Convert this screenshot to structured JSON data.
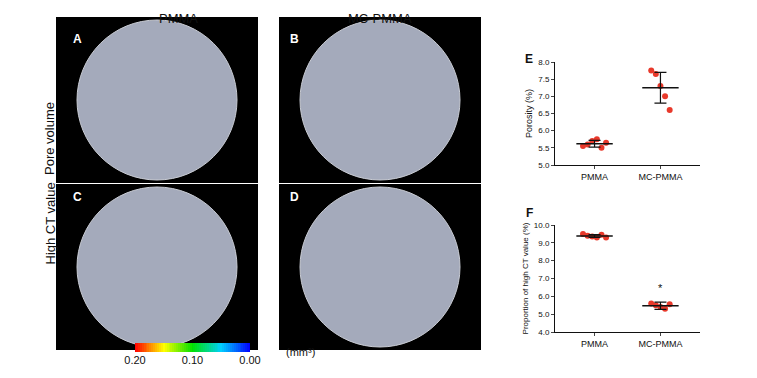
{
  "panels": {
    "columns": [
      "PMMA",
      "MC-PMMA"
    ],
    "rows": [
      "Pore volume",
      "High CT value"
    ],
    "letters": [
      "A",
      "B",
      "C",
      "D"
    ],
    "colorbar": {
      "range": [
        0.2,
        0
      ],
      "ticks": [
        {
          "value": 0.2,
          "label": "0.20"
        },
        {
          "value": 0.1,
          "label": "0.10"
        },
        {
          "value": 0,
          "label": "0.00"
        }
      ],
      "colors": [
        "#0000ff",
        "#00d0ff",
        "#00e000",
        "#ffff00",
        "#ff0000"
      ],
      "unit": "(mm³)"
    }
  },
  "chart_data": [
    {
      "type": "scatter",
      "letter": "E",
      "ylabel": "Porosity (%)",
      "categories": [
        "PMMA",
        "MC-PMMA"
      ],
      "values": [
        [
          5.55,
          5.6,
          5.7,
          5.75,
          5.5,
          5.65
        ],
        [
          7.75,
          7.65,
          7.3,
          7.0,
          6.6
        ]
      ],
      "mean": [
        5.62,
        7.25
      ],
      "error": [
        0.1,
        0.45
      ],
      "color": "#e8392b",
      "marker": "circle",
      "grid": false,
      "ylim": [
        5,
        8
      ],
      "yticks": [
        {
          "value": 5,
          "label": "5.0"
        },
        {
          "value": 5.5,
          "label": "5.5"
        },
        {
          "value": 6,
          "label": "6.0"
        },
        {
          "value": 6.5,
          "label": "6.5"
        },
        {
          "value": 7,
          "label": "7.0"
        },
        {
          "value": 7.5,
          "label": "7.5"
        },
        {
          "value": 8,
          "label": "8.0"
        }
      ]
    },
    {
      "type": "scatter",
      "letter": "F",
      "ylabel": "Proportion of high CT value (%)",
      "categories": [
        "PMMA",
        "MC-PMMA"
      ],
      "values": [
        [
          9.5,
          9.4,
          9.35,
          9.3,
          9.45,
          9.3
        ],
        [
          5.6,
          5.5,
          5.4,
          5.3,
          5.55
        ]
      ],
      "mean": [
        9.38,
        5.47
      ],
      "error": [
        0.08,
        0.2
      ],
      "color": "#e8392b",
      "marker": "circle",
      "grid": false,
      "ylim": [
        4,
        10
      ],
      "yticks": [
        {
          "value": 4,
          "label": "4.0"
        },
        {
          "value": 5,
          "label": "5.0"
        },
        {
          "value": 6,
          "label": "6.0"
        },
        {
          "value": 7,
          "label": "7.0"
        },
        {
          "value": 8,
          "label": "8.0"
        },
        {
          "value": 9,
          "label": "9.0"
        },
        {
          "value": 10,
          "label": "10.0"
        }
      ],
      "annotations": [
        {
          "text": "*",
          "x": "MC-PMMA",
          "y": 6.0
        }
      ]
    }
  ]
}
